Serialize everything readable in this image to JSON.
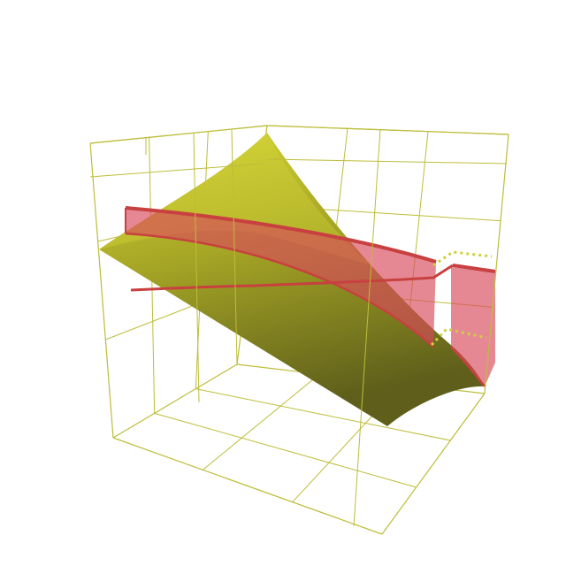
{
  "chart_data": {
    "type": "surface3d",
    "title": "",
    "xlabel": "",
    "ylabel": "",
    "zlabel": "",
    "grid": true,
    "box": "full",
    "axis_ticks_labeled": false,
    "colors": {
      "axes_box": "#bdbd3a",
      "surface_light": "#d8d838",
      "surface_mid": "#a6a626",
      "surface_dark": "#5f5f1b",
      "ribbon_fill": "#d9485a",
      "ribbon_edge": "#c8403f",
      "region_outline": "#cfcf40",
      "background": "#ffffff"
    },
    "series": [
      {
        "kind": "surface",
        "shading": "gradient"
      },
      {
        "kind": "ribbon",
        "fill_alpha": 0.65
      },
      {
        "kind": "curve"
      },
      {
        "kind": "dotted-outline"
      }
    ]
  }
}
